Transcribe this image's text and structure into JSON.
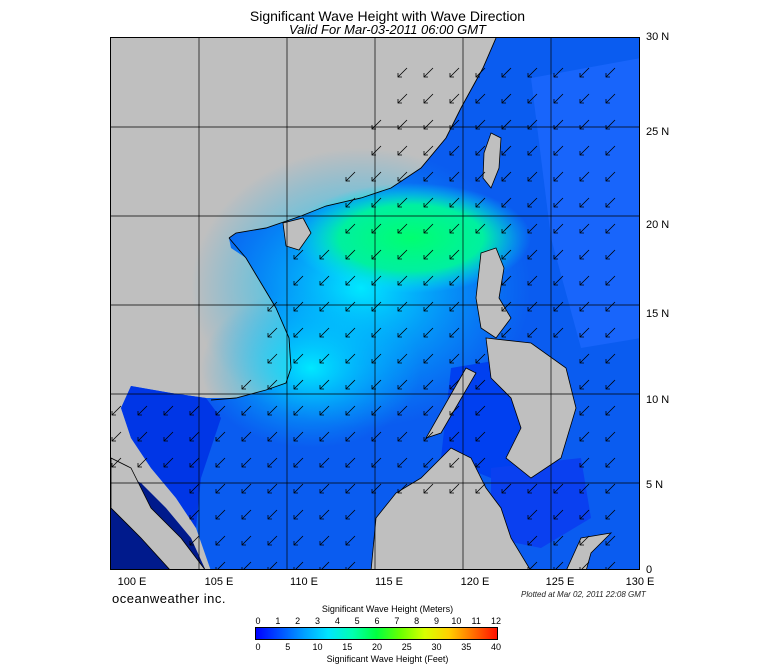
{
  "title": "Significant Wave Height with Wave Direction",
  "subtitle": "Valid For Mar-03-2011 06:00 GMT",
  "lat_labels": [
    "30 N",
    "25 N",
    "20 N",
    "15 N",
    "10 N",
    "5 N",
    "0"
  ],
  "lon_labels": [
    "100 E",
    "105 E",
    "110 E",
    "115 E",
    "120 E",
    "125 E",
    "130 E"
  ],
  "brand": "oceanweather inc.",
  "plotted": "Plotted at Mar 02, 2011 22:08 GMT",
  "legend": {
    "meters_title": "Significant Wave Height (Meters)",
    "feet_title": "Significant Wave Height (Feet)",
    "meters_ticks": [
      "0",
      "1",
      "2",
      "3",
      "4",
      "5",
      "6",
      "7",
      "8",
      "9",
      "10",
      "11",
      "12"
    ],
    "feet_ticks": [
      "0",
      "5",
      "10",
      "15",
      "20",
      "25",
      "30",
      "35",
      "40"
    ]
  },
  "colors": {
    "land": "#bfbfbf",
    "deep_blue": "#0000ff",
    "mid_blue": "#0064ff",
    "cyan": "#00dcff",
    "green": "#00ff60"
  },
  "wave_direction": "from northeast toward southwest"
}
